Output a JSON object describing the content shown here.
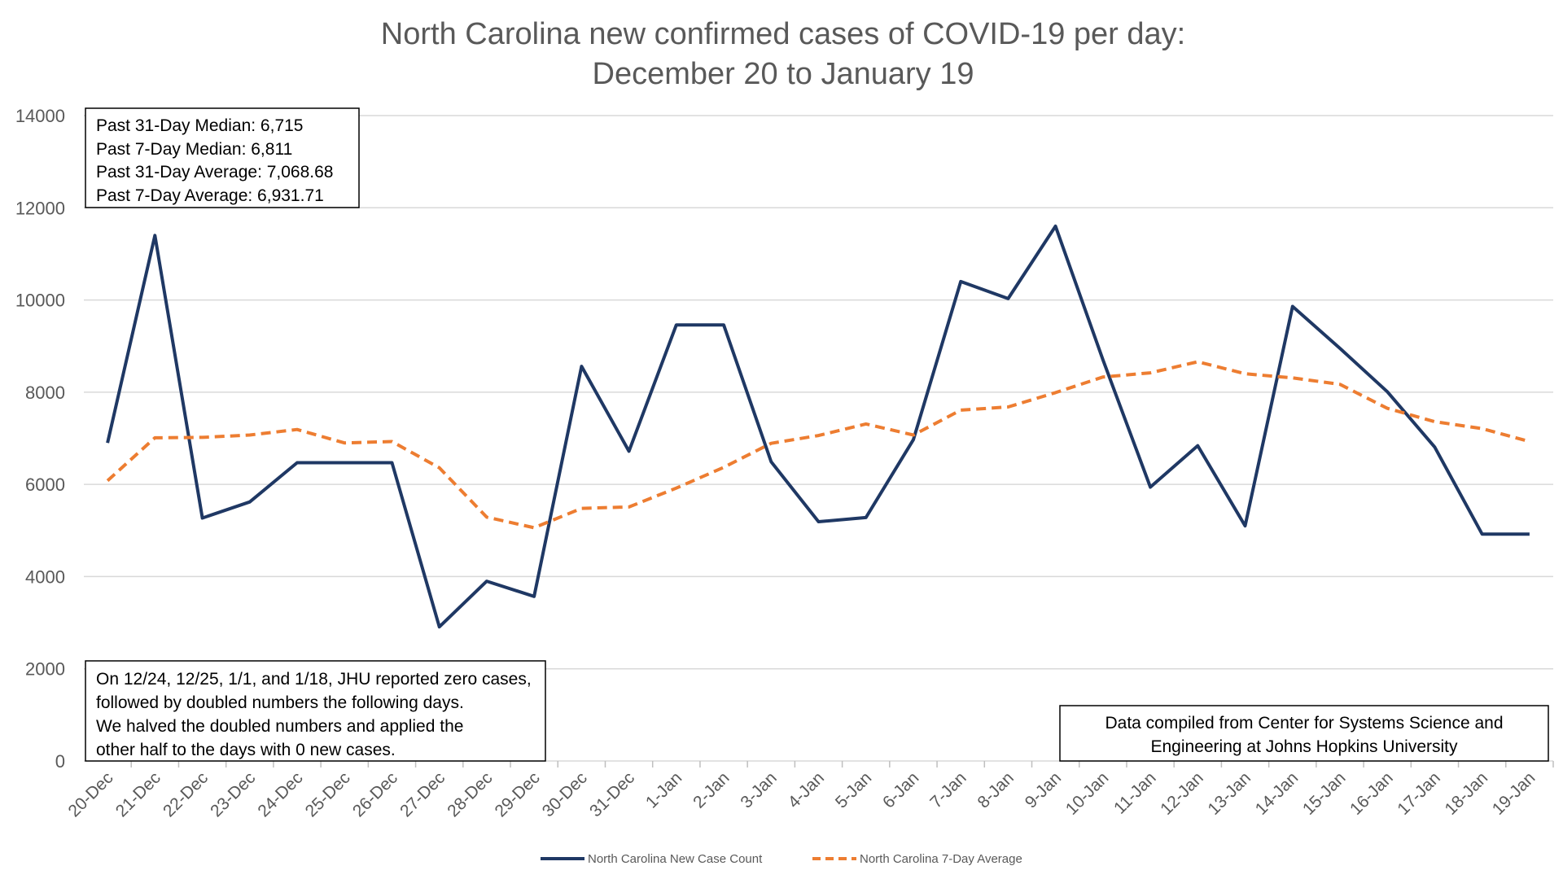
{
  "chart_data": {
    "type": "line",
    "title_line1": "North Carolina new confirmed cases of COVID-19 per day:",
    "title_line2": "December 20 to January 19",
    "xlabel": "",
    "ylabel": "",
    "ylim": [
      0,
      14000
    ],
    "yticks": [
      0,
      2000,
      4000,
      6000,
      8000,
      10000,
      12000,
      14000
    ],
    "grid": "horizontal",
    "legend_position": "bottom",
    "categories": [
      "20-Dec",
      "21-Dec",
      "22-Dec",
      "23-Dec",
      "24-Dec",
      "25-Dec",
      "26-Dec",
      "27-Dec",
      "28-Dec",
      "29-Dec",
      "30-Dec",
      "31-Dec",
      "1-Jan",
      "2-Jan",
      "3-Jan",
      "4-Jan",
      "5-Jan",
      "6-Jan",
      "7-Jan",
      "8-Jan",
      "9-Jan",
      "10-Jan",
      "11-Jan",
      "12-Jan",
      "13-Jan",
      "14-Jan",
      "15-Jan",
      "16-Jan",
      "17-Jan",
      "18-Jan",
      "19-Jan"
    ],
    "series": [
      {
        "name": "North Carolina New Case Count",
        "color": "#1f3864",
        "style": "solid",
        "values": [
          6900,
          11400,
          5270,
          5620,
          6470,
          6470,
          6470,
          2910,
          3900,
          3570,
          8560,
          6720,
          9460,
          9460,
          6490,
          5190,
          5280,
          6970,
          10400,
          10030,
          11600,
          8700,
          5940,
          6840,
          5100,
          9860,
          8950,
          8010,
          6810,
          4920,
          4920
        ]
      },
      {
        "name": "North Carolina 7-Day Average",
        "color": "#ed7d31",
        "style": "dashed",
        "values": [
          6080,
          7010,
          7020,
          7070,
          7190,
          6900,
          6930,
          6360,
          5290,
          5060,
          5480,
          5510,
          5920,
          6370,
          6890,
          7060,
          7310,
          7070,
          7610,
          7680,
          7990,
          8330,
          8420,
          8660,
          8400,
          8310,
          8170,
          7650,
          7360,
          7210,
          6930
        ]
      }
    ],
    "annotations": {
      "stats_box": [
        "Past 31-Day Median: 6,715",
        "Past 7-Day Median: 6,811",
        "Past 31-Day Average: 7,068.68",
        "Past 7-Day Average: 6,931.71"
      ],
      "note_box": [
        "On 12/24, 12/25, 1/1, and 1/18, JHU reported zero cases,",
        "followed by doubled numbers the following days.",
        "We halved the doubled numbers and applied the",
        "other half to the days with 0 new cases."
      ],
      "source_box": [
        "Data compiled from Center for Systems Science and",
        "Engineering at Johns Hopkins University"
      ]
    }
  }
}
